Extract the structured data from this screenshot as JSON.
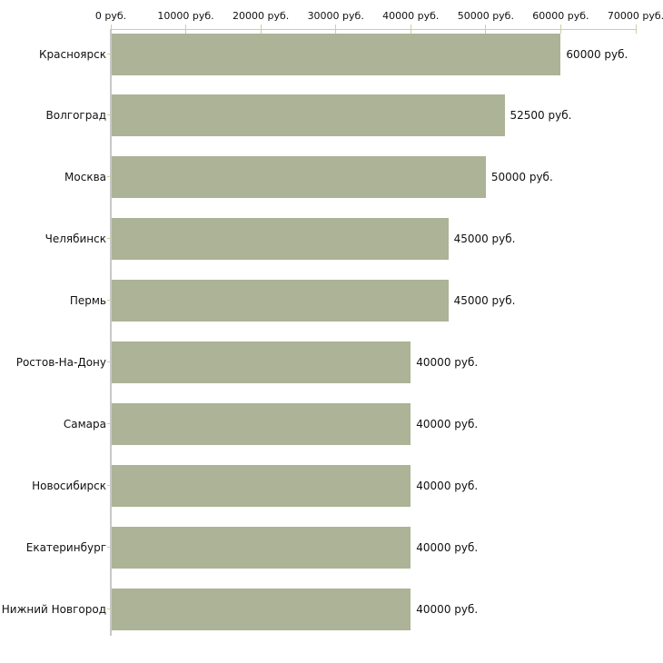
{
  "chart_data": {
    "type": "bar",
    "orientation": "horizontal",
    "title": "",
    "xlabel": "",
    "ylabel": "",
    "unit": "руб.",
    "grid": false,
    "legend": false,
    "categories": [
      "Красноярск",
      "Волгоград",
      "Москва",
      "Челябинск",
      "Пермь",
      "Ростов-На-Дону",
      "Самара",
      "Новосибирск",
      "Екатеринбург",
      "Нижний Новгород"
    ],
    "values": [
      60000,
      52500,
      50000,
      45000,
      45000,
      40000,
      40000,
      40000,
      40000,
      40000
    ],
    "value_labels": [
      "60000 руб.",
      "52500 руб.",
      "50000 руб.",
      "45000 руб.",
      "45000 руб.",
      "40000 руб.",
      "40000 руб.",
      "40000 руб.",
      "40000 руб.",
      "40000 руб."
    ],
    "x_axis": {
      "position": "top",
      "min": 0,
      "max": 70000,
      "ticks": [
        0,
        10000,
        20000,
        30000,
        40000,
        50000,
        60000,
        70000
      ],
      "tick_labels": [
        "0 руб.",
        "10000 руб.",
        "20000 руб.",
        "30000 руб.",
        "40000 руб.",
        "50000 руб.",
        "60000 руб.",
        "70000 руб."
      ]
    },
    "colors": {
      "bar": "#acb396",
      "axis_line": "#c8c8c8",
      "tick": "#cdcfa1",
      "text": "#111111",
      "background": "#ffffff"
    }
  }
}
